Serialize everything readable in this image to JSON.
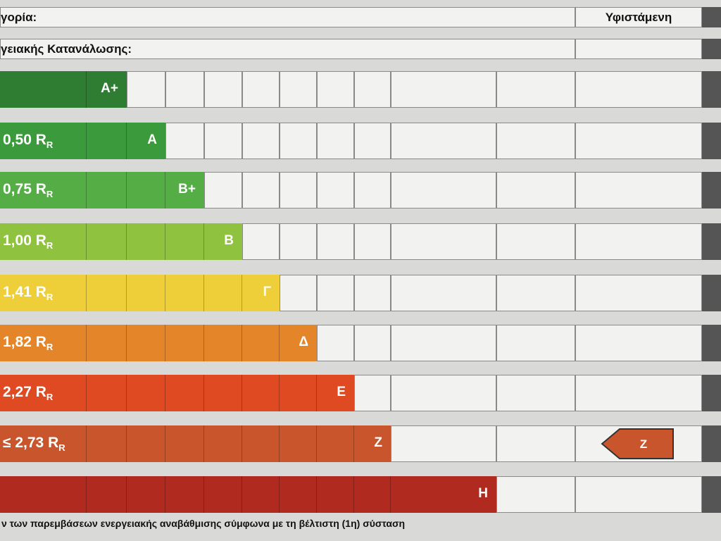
{
  "header": {
    "category": "γορία:",
    "current": "Υφιστάμενη",
    "consumption": "γειακής Κατανάλωσης:"
  },
  "ratings": [
    {
      "class": "A+",
      "threshold": null,
      "subscript": null,
      "color": "#2f7d32"
    },
    {
      "class": "A",
      "threshold": "0,50 R",
      "subscript": "R",
      "color": "#3a9a3c"
    },
    {
      "class": "B+",
      "threshold": "0,75 R",
      "subscript": "R",
      "color": "#55ad45"
    },
    {
      "class": "B",
      "threshold": "1,00 R",
      "subscript": "R",
      "color": "#8fc23e"
    },
    {
      "class": "Γ",
      "threshold": "1,41 R",
      "subscript": "R",
      "color": "#eecf3a"
    },
    {
      "class": "Δ",
      "threshold": "1,82 R",
      "subscript": "R",
      "color": "#e5852a"
    },
    {
      "class": "Ε",
      "threshold": "2,27 R",
      "subscript": "R",
      "color": "#df4a22"
    },
    {
      "class": "Ζ",
      "threshold": "≤ 2,73 R",
      "subscript": "R",
      "color": "#c9552c"
    },
    {
      "class": "Η",
      "threshold": null,
      "subscript": null,
      "color": "#b02a1f"
    }
  ],
  "current_indicator": {
    "label": "Z",
    "row": 7
  },
  "footer": "ν των παρεμβάσεων ενεργειακής αναβάθμισης σύμφωνα με τη βέλτιστη (1η) σύσταση"
}
